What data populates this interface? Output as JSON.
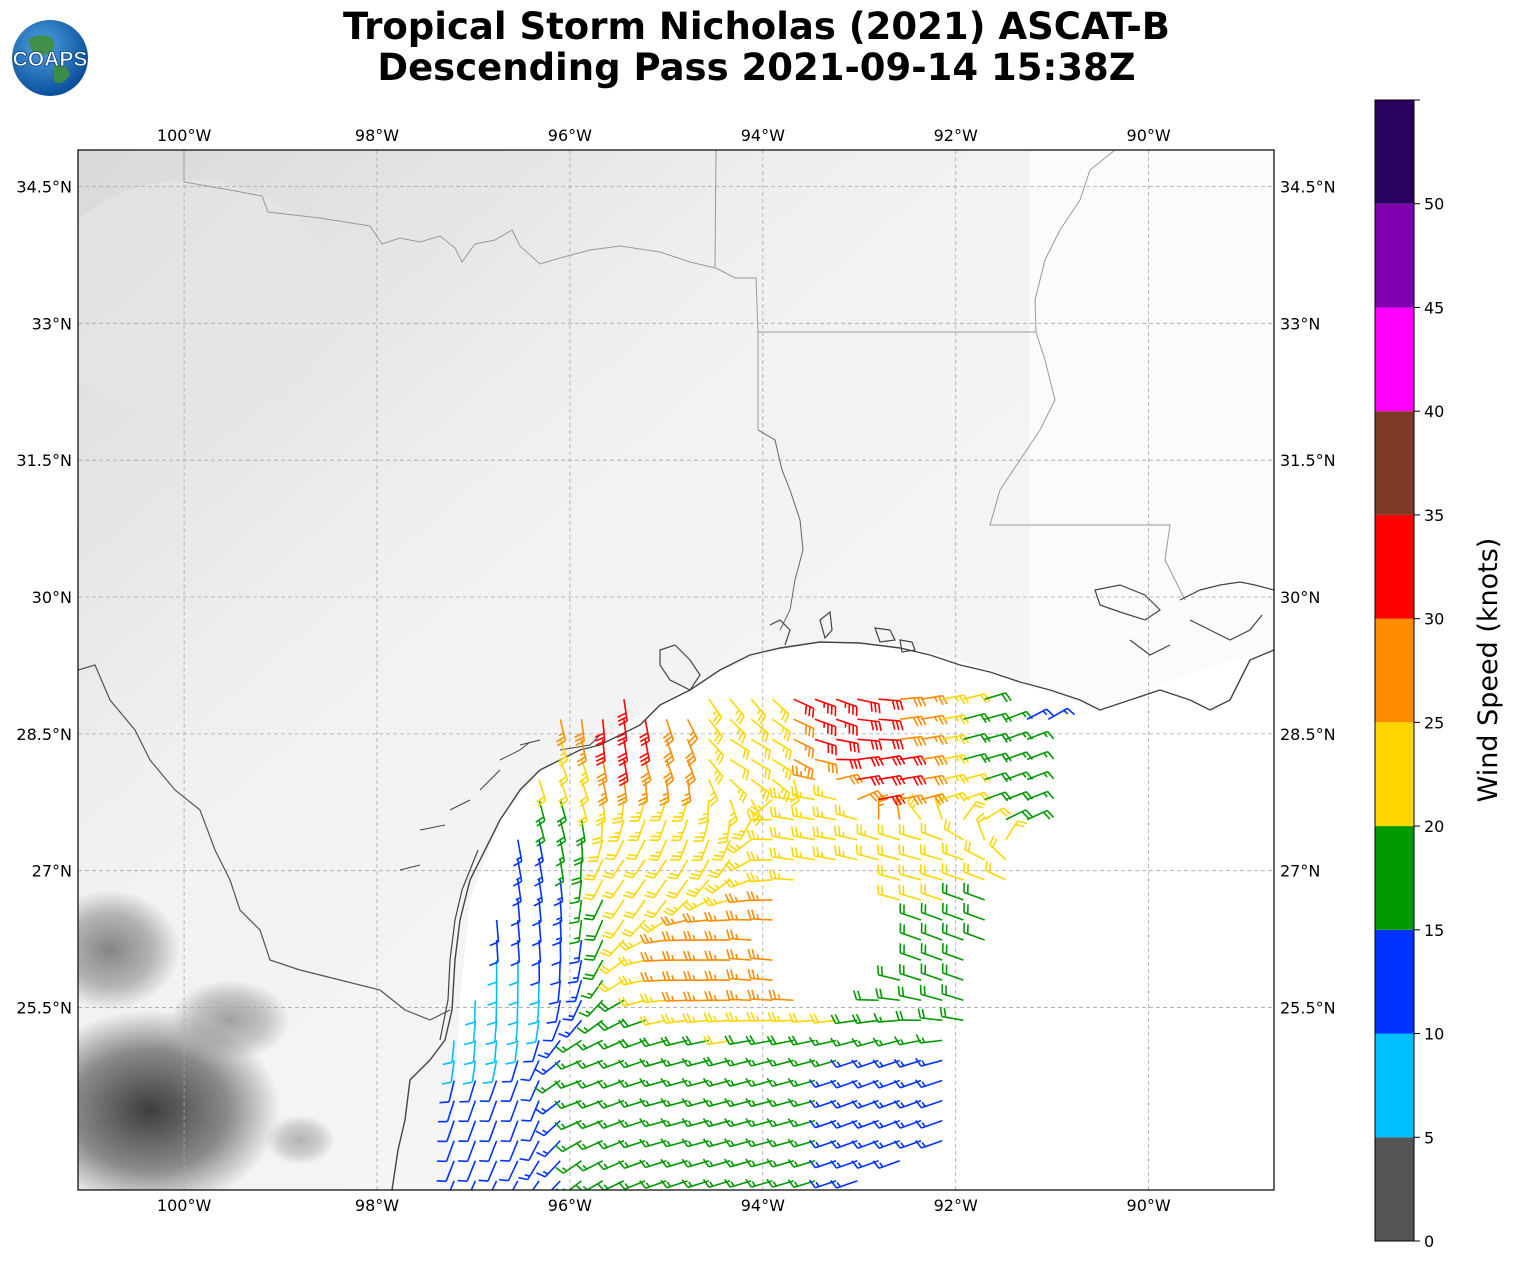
{
  "header": {
    "title_line1": "Tropical Storm Nicholas (2021) ASCAT-B",
    "title_line2": "Descending Pass 2021-09-14 15:38Z"
  },
  "logo": {
    "text": "COAPS",
    "icon": "globe-icon"
  },
  "map": {
    "lon_range": [
      -101.1,
      -88.7
    ],
    "lat_range": [
      23.5,
      34.9
    ],
    "lon_ticks": [
      "100°W",
      "98°W",
      "96°W",
      "94°W",
      "92°W",
      "90°W"
    ],
    "lon_tick_values": [
      -100,
      -98,
      -96,
      -94,
      -92,
      -90
    ],
    "lat_ticks": [
      "34.5°N",
      "33°N",
      "31.5°N",
      "30°N",
      "28.5°N",
      "27°N",
      "25.5°N"
    ],
    "lat_tick_values": [
      34.5,
      33,
      31.5,
      30,
      28.5,
      27,
      25.5
    ],
    "grid": true,
    "background": "grayscale satellite imagery (mostly clear, cloud patches in southwest)"
  },
  "colorbar": {
    "label": "Wind Speed (knots)",
    "tick_labels": [
      "0",
      "5",
      "10",
      "15",
      "20",
      "25",
      "30",
      "35",
      "40",
      "45",
      "50"
    ],
    "bins": [
      {
        "min": 0,
        "max": 5,
        "color": "#555555"
      },
      {
        "min": 5,
        "max": 10,
        "color": "#00bfff"
      },
      {
        "min": 10,
        "max": 15,
        "color": "#0033ff"
      },
      {
        "min": 15,
        "max": 20,
        "color": "#009900"
      },
      {
        "min": 20,
        "max": 25,
        "color": "#ffd700"
      },
      {
        "min": 25,
        "max": 30,
        "color": "#ff8c00"
      },
      {
        "min": 30,
        "max": 35,
        "color": "#ff0000"
      },
      {
        "min": 35,
        "max": 40,
        "color": "#803a28"
      },
      {
        "min": 40,
        "max": 45,
        "color": "#ff00ff"
      },
      {
        "min": 45,
        "max": 50,
        "color": "#8000b0"
      },
      {
        "min": 50,
        "max": 55,
        "color": "#2a0060"
      }
    ]
  },
  "wind_field": [
    {
      "lon": -95.3,
      "lat": 28.5,
      "speed": 32,
      "dir": 170
    },
    {
      "lon": -95.6,
      "lat": 28.6,
      "speed": 31,
      "dir": 175
    },
    {
      "lon": -95.0,
      "lat": 28.35,
      "speed": 28,
      "dir": 160
    },
    {
      "lon": -94.8,
      "lat": 29.0,
      "speed": 27,
      "dir": 150
    },
    {
      "lon": -94.3,
      "lat": 28.9,
      "speed": 23,
      "dir": 140
    },
    {
      "lon": -94.2,
      "lat": 28.4,
      "speed": 22,
      "dir": 120
    },
    {
      "lon": -93.3,
      "lat": 28.8,
      "speed": 33,
      "dir": 110
    },
    {
      "lon": -92.9,
      "lat": 28.6,
      "speed": 32,
      "dir": 95
    },
    {
      "lon": -92.8,
      "lat": 28.1,
      "speed": 31,
      "dir": 80
    },
    {
      "lon": -92.4,
      "lat": 28.6,
      "speed": 27,
      "dir": 80
    },
    {
      "lon": -91.8,
      "lat": 28.5,
      "speed": 18,
      "dir": 75
    },
    {
      "lon": -91.3,
      "lat": 28.4,
      "speed": 17,
      "dir": 70
    },
    {
      "lon": -91.1,
      "lat": 28.6,
      "speed": 13,
      "dir": 60
    },
    {
      "lon": -96.1,
      "lat": 28.2,
      "speed": 22,
      "dir": 160
    },
    {
      "lon": -96.4,
      "lat": 27.7,
      "speed": 18,
      "dir": 165
    },
    {
      "lon": -96.5,
      "lat": 27.2,
      "speed": 14,
      "dir": 170
    },
    {
      "lon": -96.6,
      "lat": 26.5,
      "speed": 12,
      "dir": 175
    },
    {
      "lon": -96.8,
      "lat": 25.8,
      "speed": 8,
      "dir": 180
    },
    {
      "lon": -96.9,
      "lat": 25.3,
      "speed": 9,
      "dir": 185
    },
    {
      "lon": -96.6,
      "lat": 24.5,
      "speed": 11,
      "dir": 200
    },
    {
      "lon": -95.7,
      "lat": 24.6,
      "speed": 17,
      "dir": 250
    },
    {
      "lon": -94.8,
      "lat": 24.5,
      "speed": 17,
      "dir": 255
    },
    {
      "lon": -93.8,
      "lat": 24.5,
      "speed": 16,
      "dir": 255
    },
    {
      "lon": -92.8,
      "lat": 24.4,
      "speed": 13,
      "dir": 250
    },
    {
      "lon": -94.6,
      "lat": 26.0,
      "speed": 27,
      "dir": 270
    },
    {
      "lon": -93.9,
      "lat": 26.0,
      "speed": 26,
      "dir": 275
    },
    {
      "lon": -93.4,
      "lat": 27.5,
      "speed": 23,
      "dir": 280
    },
    {
      "lon": -92.5,
      "lat": 27.0,
      "speed": 22,
      "dir": 285
    },
    {
      "lon": -92.0,
      "lat": 26.3,
      "speed": 19,
      "dir": 290
    },
    {
      "lon": -95.2,
      "lat": 27.0,
      "speed": 21,
      "dir": 215
    },
    {
      "lon": -95.0,
      "lat": 27.6,
      "speed": 23,
      "dir": 200
    }
  ]
}
